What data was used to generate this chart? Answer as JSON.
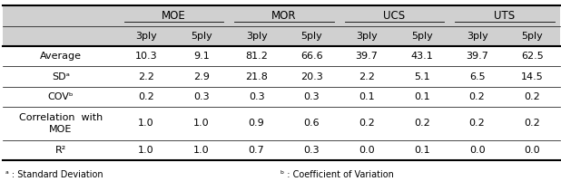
{
  "header_group1_label": "MOE",
  "header_group2_label": "MOR",
  "header_group3_label": "UCS",
  "header_group4_label": "UTS",
  "header_row2": [
    "3ply",
    "5ply",
    "3ply",
    "5ply",
    "3ply",
    "5ply",
    "3ply",
    "5ply"
  ],
  "rows": [
    [
      "Average",
      "10.3",
      "9.1",
      "81.2",
      "66.6",
      "39.7",
      "43.1",
      "39.7",
      "62.5"
    ],
    [
      "SDᵃ",
      "2.2",
      "2.9",
      "21.8",
      "20.3",
      "2.2",
      "5.1",
      "6.5",
      "14.5"
    ],
    [
      "COVᵇ",
      "0.2",
      "0.3",
      "0.3",
      "0.3",
      "0.1",
      "0.1",
      "0.2",
      "0.2"
    ],
    [
      "Correlation  with\nMOE",
      "1.0",
      "1.0",
      "0.9",
      "0.6",
      "0.2",
      "0.2",
      "0.2",
      "0.2"
    ],
    [
      "R²",
      "1.0",
      "1.0",
      "0.7",
      "0.3",
      "0.0",
      "0.1",
      "0.0",
      "0.0"
    ]
  ],
  "footnote_left": "ᵃ : Standard Deviation",
  "footnote_right": "ᵇ : Coefficient of Variation",
  "header_bg": "#d0d0d0",
  "bg_color": "#ffffff",
  "col_widths_rel": [
    2.1,
    1.0,
    1.0,
    1.0,
    1.0,
    1.0,
    1.0,
    1.0,
    1.0
  ],
  "row_heights_rel": [
    1.0,
    1.0,
    1.0,
    1.0,
    1.0,
    1.65,
    1.0
  ],
  "figsize": [
    6.18,
    2.11
  ],
  "dpi": 100,
  "fs_group": 8.5,
  "fs_sub": 8.0,
  "fs_data": 8.0,
  "fs_foot": 7.0,
  "lw_thick": 1.5,
  "lw_thin": 0.5
}
